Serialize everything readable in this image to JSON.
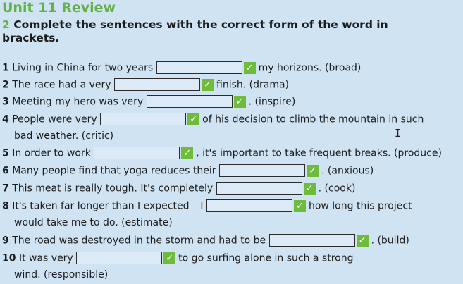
{
  "title": "Unit 11 Review",
  "instruction": {
    "number": "2",
    "text": "Complete the sentences with the correct form of the word in brackets."
  },
  "items": [
    {
      "num": "1",
      "before": "Living in China for two years",
      "after": "my horizons. (broad)"
    },
    {
      "num": "2",
      "before": "The race had a very",
      "after": "finish. (drama)"
    },
    {
      "num": "3",
      "before": "Meeting my hero was very",
      "after": ". (inspire)"
    },
    {
      "num": "4",
      "before": "People were very",
      "after": "of his decision to climb the mountain in such",
      "cont": "bad weather. (critic)"
    },
    {
      "num": "5",
      "before": "In order to work",
      "after": ", it's important to take frequent breaks. (produce)"
    },
    {
      "num": "6",
      "before": "Many people find that yoga reduces their",
      "after": ". (anxious)"
    },
    {
      "num": "7",
      "before": "This meat is really tough. It's completely",
      "after": ". (cook)"
    },
    {
      "num": "8",
      "before": "It's taken far longer than I expected – I",
      "after": "how long this project",
      "cont": "would take me to do. (estimate)"
    },
    {
      "num": "9",
      "before": "The road was destroyed in the storm and had to be",
      "after": ". (build)"
    },
    {
      "num": "10",
      "before": "It was very",
      "after": "to go surfing alone in such a strong",
      "cont": "wind. (responsible)"
    }
  ],
  "check_glyph": "✓",
  "cursor_glyph": "I"
}
